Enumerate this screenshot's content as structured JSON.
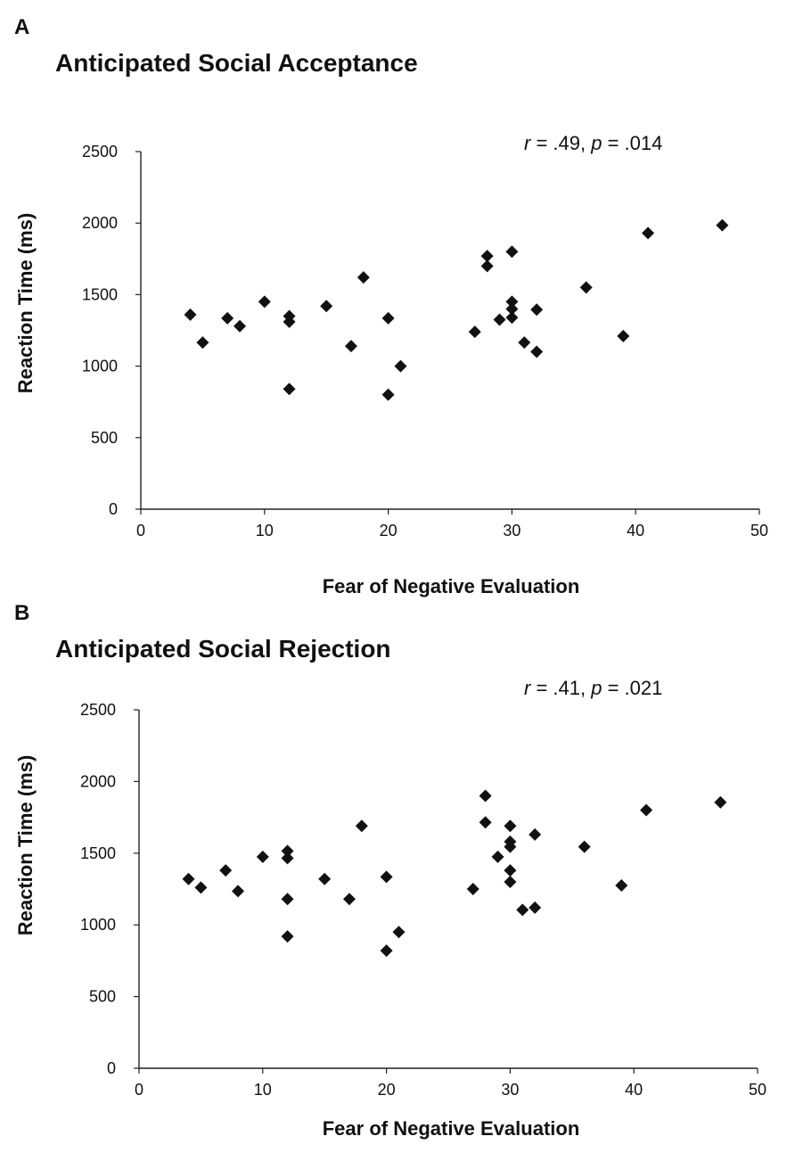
{
  "chart_data": [
    {
      "type": "scatter",
      "panel": "A",
      "title": "Anticipated Social Acceptance",
      "annotation": {
        "r_label": "r",
        "r_value": " = .49, ",
        "p_label": "p",
        "p_value": " = .014"
      },
      "xlabel": "Fear of Negative Evaluation",
      "ylabel": "Reaction Time (ms)",
      "xlim": [
        0,
        50
      ],
      "ylim": [
        0,
        2500
      ],
      "xticks": [
        0,
        10,
        20,
        30,
        40,
        50
      ],
      "yticks": [
        0,
        500,
        1000,
        1500,
        2000,
        2500
      ],
      "points": [
        {
          "x": 4,
          "y": 1360
        },
        {
          "x": 5,
          "y": 1165
        },
        {
          "x": 7,
          "y": 1335
        },
        {
          "x": 8,
          "y": 1280
        },
        {
          "x": 10,
          "y": 1450
        },
        {
          "x": 12,
          "y": 1350
        },
        {
          "x": 12,
          "y": 1310
        },
        {
          "x": 12,
          "y": 840
        },
        {
          "x": 15,
          "y": 1420
        },
        {
          "x": 17,
          "y": 1140
        },
        {
          "x": 18,
          "y": 1620
        },
        {
          "x": 20,
          "y": 1335
        },
        {
          "x": 20,
          "y": 800
        },
        {
          "x": 21,
          "y": 1000
        },
        {
          "x": 27,
          "y": 1240
        },
        {
          "x": 28,
          "y": 1770
        },
        {
          "x": 28,
          "y": 1700
        },
        {
          "x": 29,
          "y": 1325
        },
        {
          "x": 30,
          "y": 1800
        },
        {
          "x": 30,
          "y": 1450
        },
        {
          "x": 30,
          "y": 1400
        },
        {
          "x": 30,
          "y": 1340
        },
        {
          "x": 31,
          "y": 1165
        },
        {
          "x": 32,
          "y": 1395
        },
        {
          "x": 32,
          "y": 1100
        },
        {
          "x": 36,
          "y": 1550
        },
        {
          "x": 39,
          "y": 1210
        },
        {
          "x": 41,
          "y": 1930
        },
        {
          "x": 47,
          "y": 1985
        }
      ]
    },
    {
      "type": "scatter",
      "panel": "B",
      "title": "Anticipated Social Rejection",
      "annotation": {
        "r_label": "r",
        "r_value": " = .41, ",
        "p_label": "p",
        "p_value": " = .021"
      },
      "xlabel": "Fear of Negative Evaluation",
      "ylabel": "Reaction Time (ms)",
      "xlim": [
        0,
        50
      ],
      "ylim": [
        0,
        2500
      ],
      "xticks": [
        0,
        10,
        20,
        30,
        40,
        50
      ],
      "yticks": [
        0,
        500,
        1000,
        1500,
        2000,
        2500
      ],
      "points": [
        {
          "x": 4,
          "y": 1320
        },
        {
          "x": 5,
          "y": 1260
        },
        {
          "x": 7,
          "y": 1380
        },
        {
          "x": 8,
          "y": 1235
        },
        {
          "x": 10,
          "y": 1475
        },
        {
          "x": 12,
          "y": 1515
        },
        {
          "x": 12,
          "y": 1465
        },
        {
          "x": 12,
          "y": 1180
        },
        {
          "x": 12,
          "y": 920
        },
        {
          "x": 15,
          "y": 1320
        },
        {
          "x": 17,
          "y": 1180
        },
        {
          "x": 18,
          "y": 1690
        },
        {
          "x": 20,
          "y": 1335
        },
        {
          "x": 20,
          "y": 820
        },
        {
          "x": 21,
          "y": 950
        },
        {
          "x": 27,
          "y": 1250
        },
        {
          "x": 28,
          "y": 1900
        },
        {
          "x": 28,
          "y": 1715
        },
        {
          "x": 29,
          "y": 1475
        },
        {
          "x": 30,
          "y": 1690
        },
        {
          "x": 30,
          "y": 1580
        },
        {
          "x": 30,
          "y": 1545
        },
        {
          "x": 30,
          "y": 1380
        },
        {
          "x": 30,
          "y": 1300
        },
        {
          "x": 31,
          "y": 1105
        },
        {
          "x": 32,
          "y": 1630
        },
        {
          "x": 32,
          "y": 1120
        },
        {
          "x": 36,
          "y": 1545
        },
        {
          "x": 39,
          "y": 1275
        },
        {
          "x": 41,
          "y": 1800
        },
        {
          "x": 47,
          "y": 1855
        }
      ]
    }
  ]
}
